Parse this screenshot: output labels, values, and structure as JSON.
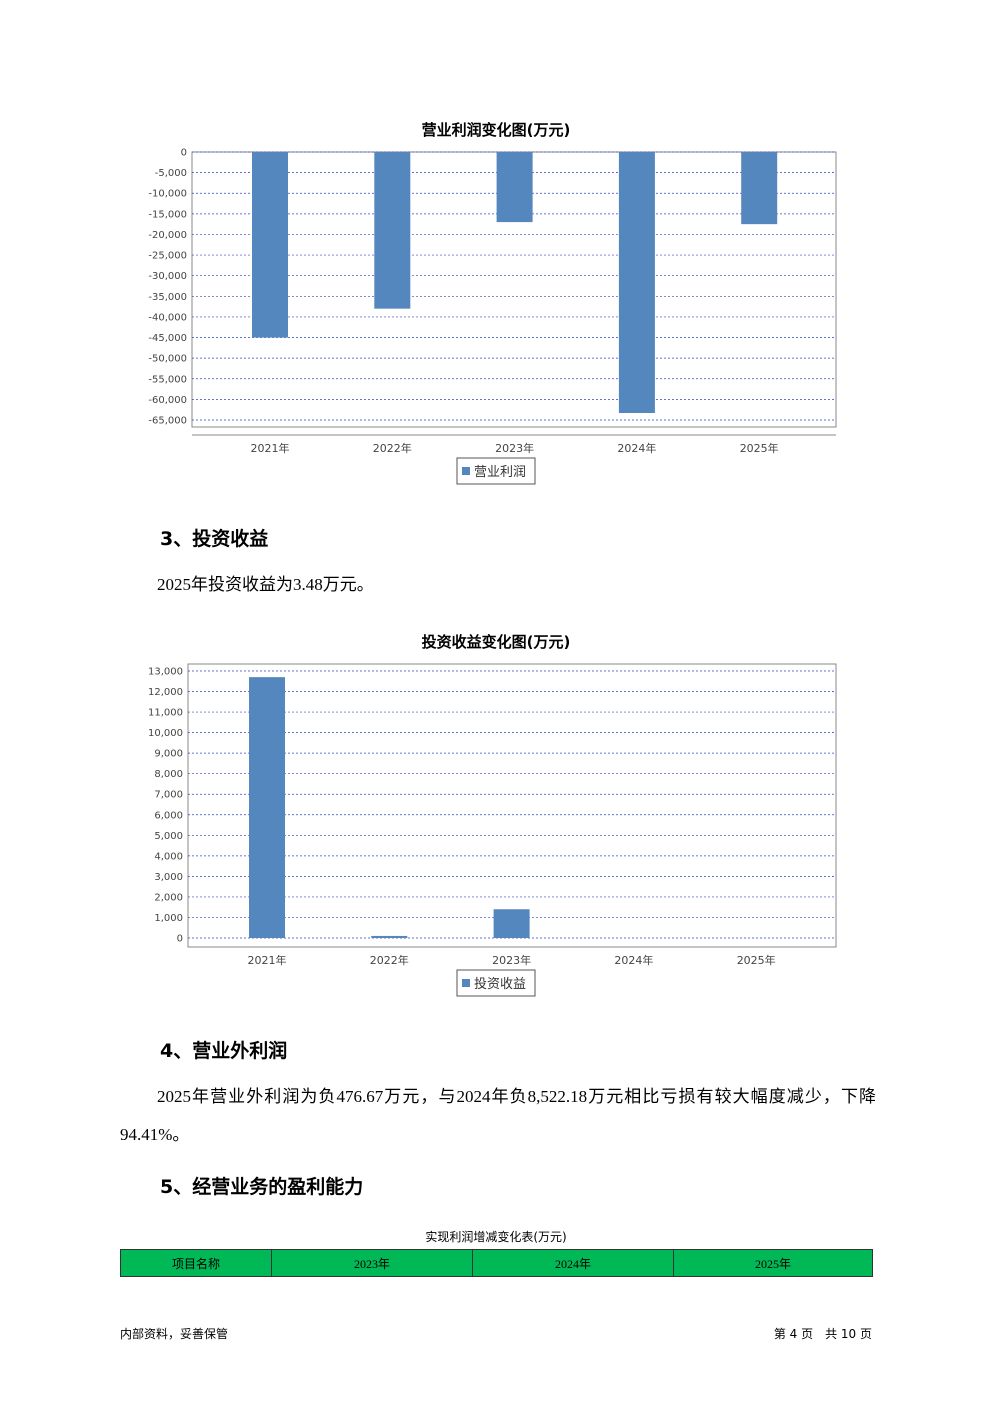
{
  "chart_data": [
    {
      "type": "bar",
      "title": "营业利润变化图(万元)",
      "categories": [
        "2021年",
        "2022年",
        "2023年",
        "2024年",
        "2025年"
      ],
      "series": [
        {
          "name": "营业利润",
          "color": "#5387bd",
          "values": [
            -45000,
            -38000,
            -17000,
            -63300,
            -17500
          ]
        }
      ],
      "ylim": [
        -66700,
        0
      ],
      "yticks": [
        0,
        {
          "value": -5000,
          "label": "-5,000"
        },
        {
          "value": -10000,
          "label": "-10,000"
        },
        {
          "value": -15000,
          "label": "-15,000"
        },
        {
          "value": -20000,
          "label": "-20,000"
        },
        {
          "value": -25000,
          "label": "-25,000"
        },
        {
          "value": -30000,
          "label": "-30,000"
        },
        {
          "value": -35000,
          "label": "-35,000"
        },
        {
          "value": -40000,
          "label": "-40,000"
        },
        {
          "value": -45000,
          "label": "-45,000"
        },
        {
          "value": -50000,
          "label": "-50,000"
        },
        {
          "value": -55000,
          "label": "-55,000"
        },
        {
          "value": -60000,
          "label": "-60,000"
        },
        {
          "value": -65000,
          "label": "-65,000"
        }
      ],
      "grid": true
    },
    {
      "type": "bar",
      "title": "投资收益变化图(万元)",
      "categories": [
        "2021年",
        "2022年",
        "2023年",
        "2024年",
        "2025年"
      ],
      "series": [
        {
          "name": "投资收益",
          "color": "#5387bd",
          "values": [
            12700,
            100,
            1400,
            0,
            3.48
          ]
        }
      ],
      "ylim": [
        0,
        13340
      ],
      "yticks": [
        0,
        {
          "value": 1000,
          "label": "1,000"
        },
        {
          "value": 2000,
          "label": "2,000"
        },
        {
          "value": 3000,
          "label": "3,000"
        },
        {
          "value": 4000,
          "label": "4,000"
        },
        {
          "value": 5000,
          "label": "5,000"
        },
        {
          "value": 6000,
          "label": "6,000"
        },
        {
          "value": 7000,
          "label": "7,000"
        },
        {
          "value": 8000,
          "label": "8,000"
        },
        {
          "value": 9000,
          "label": "9,000"
        },
        {
          "value": 10000,
          "label": "10,000"
        },
        {
          "value": 11000,
          "label": "11,000"
        },
        {
          "value": 12000,
          "label": "12,000"
        },
        {
          "value": 13000,
          "label": "13,000"
        }
      ],
      "grid": true
    }
  ],
  "sections": [
    {
      "heading": "3、投资收益",
      "paragraph": "2025年投资收益为3.48万元。"
    },
    {
      "heading": "4、营业外利润",
      "paragraph": "2025年营业外利润为负476.67万元，与2024年负8,522.18万元相比亏损有较大幅度减少，下降94.41%。"
    },
    {
      "heading": "5、经营业务的盈利能力"
    }
  ],
  "table": {
    "title": "实现利润增减变化表(万元)",
    "header": [
      "项目名称",
      "2023年",
      "2024年",
      "2025年"
    ]
  },
  "footer": {
    "left": "内部资料，妥善保管",
    "right": "第 4 页　共 10 页"
  }
}
